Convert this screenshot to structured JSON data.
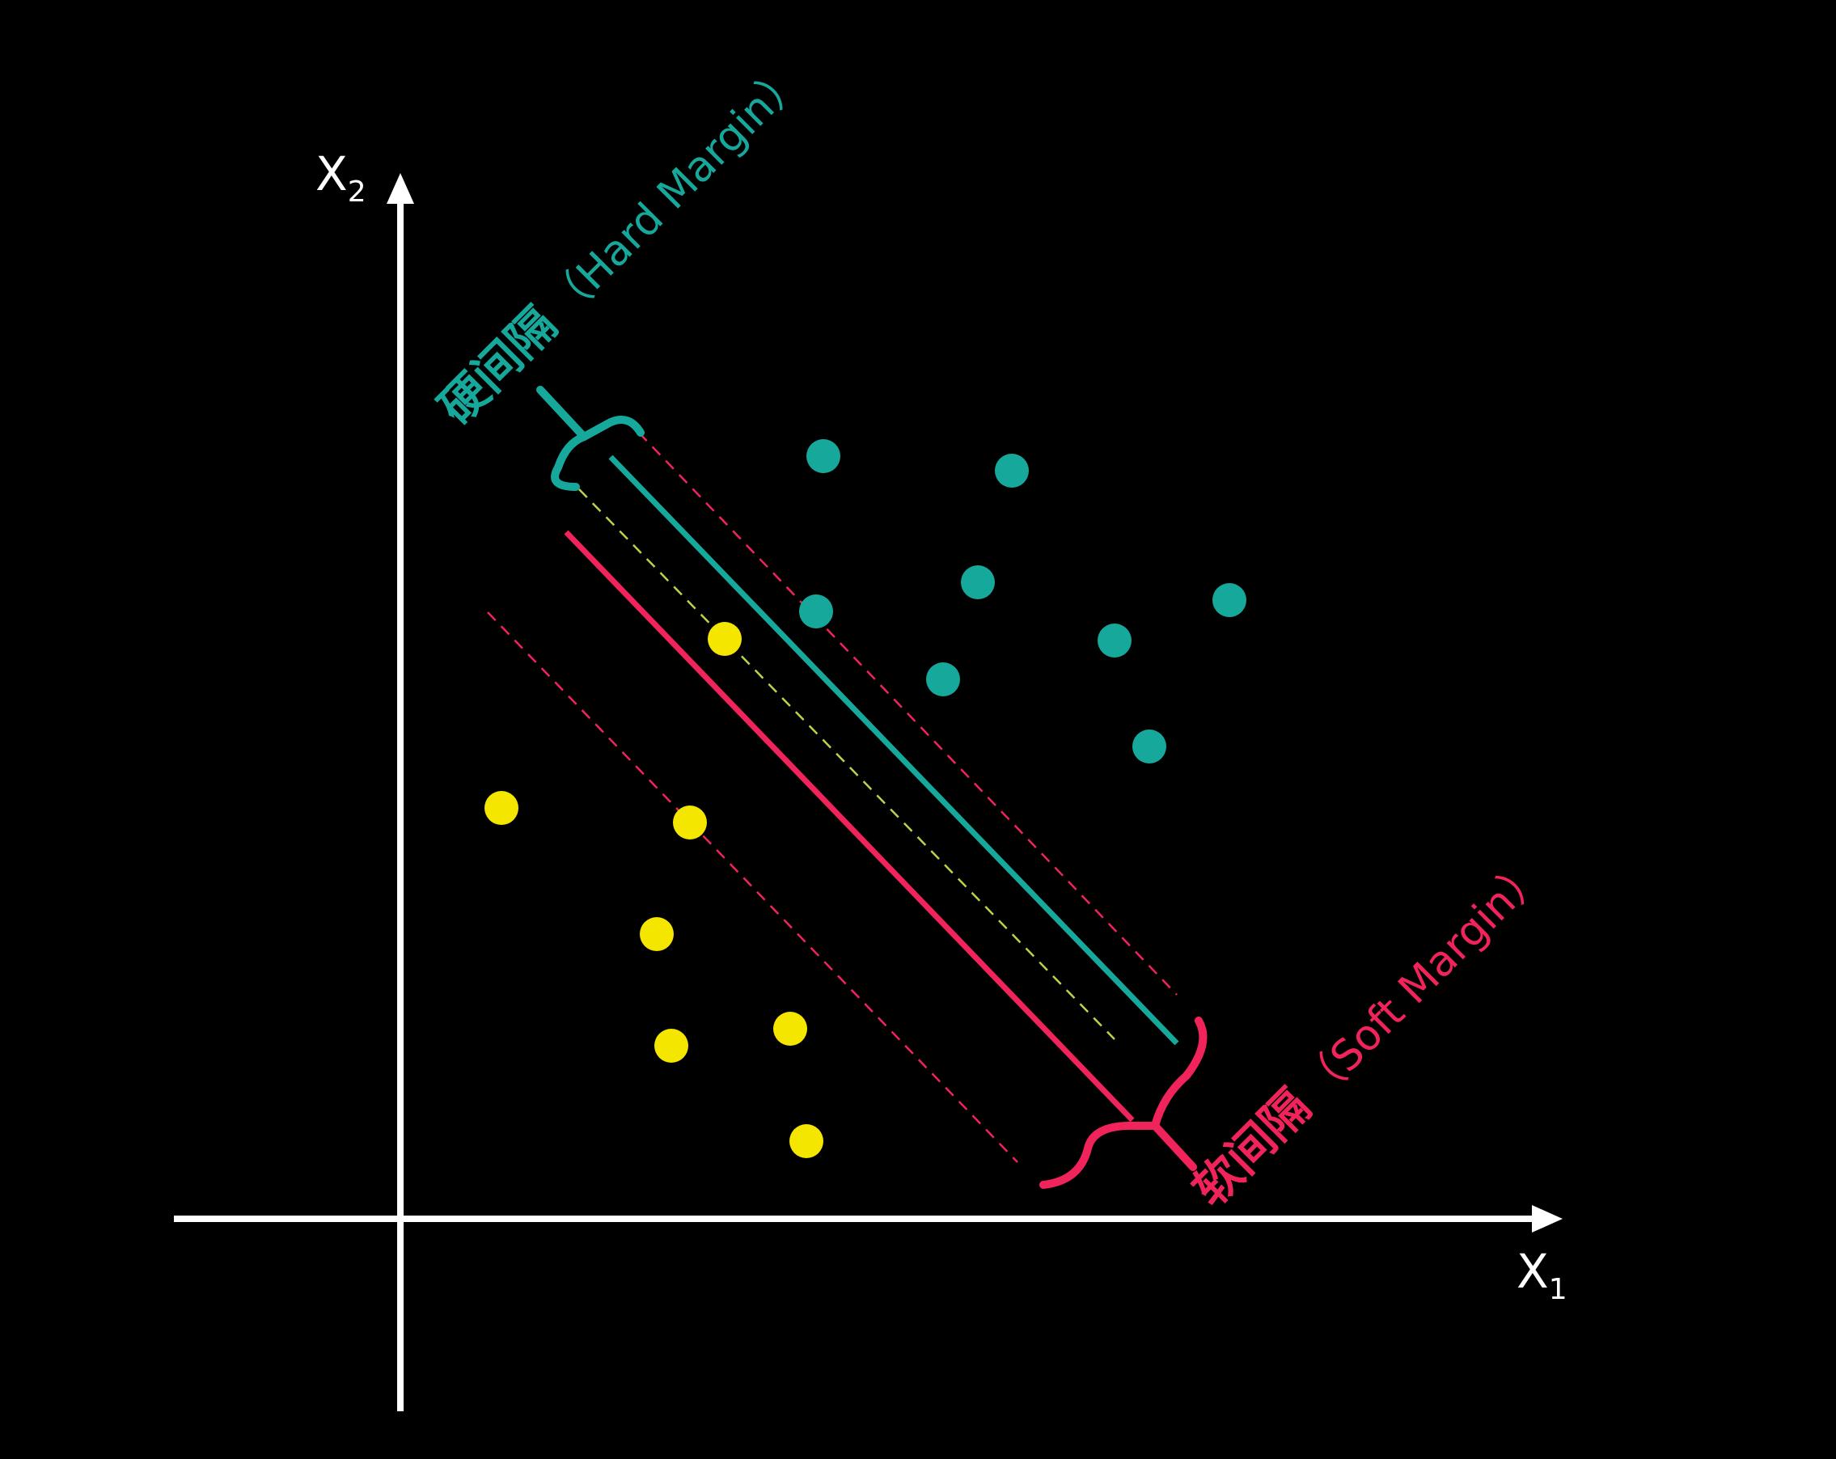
{
  "axes": {
    "x_label": "X",
    "x_subscript": "1",
    "y_label": "X",
    "y_subscript": "2"
  },
  "hard_margin": {
    "label_zh": "硬间隔",
    "label_en": "（Hard Margin）",
    "color": "#17a89c"
  },
  "soft_margin": {
    "label_zh": "软间隔",
    "label_en": "（Soft Margin）",
    "color": "#f0245a"
  },
  "colors": {
    "axis": "#ffffff",
    "class_a_points": "#17a89c",
    "class_b_points": "#f5e600",
    "hard_margin_midline": "#b8d44a",
    "soft_margin_dashes": "#f0245a"
  },
  "points": {
    "class_a": [
      [
        1018,
        564
      ],
      [
        1251,
        582
      ],
      [
        1209,
        720
      ],
      [
        1009,
        756
      ],
      [
        1520,
        742
      ],
      [
        1378,
        792
      ],
      [
        1166,
        840
      ],
      [
        1421,
        923
      ]
    ],
    "class_b": [
      [
        896,
        790
      ],
      [
        620,
        999
      ],
      [
        853,
        1017
      ],
      [
        812,
        1155
      ],
      [
        977,
        1272
      ],
      [
        830,
        1293
      ],
      [
        997,
        1411
      ]
    ]
  }
}
